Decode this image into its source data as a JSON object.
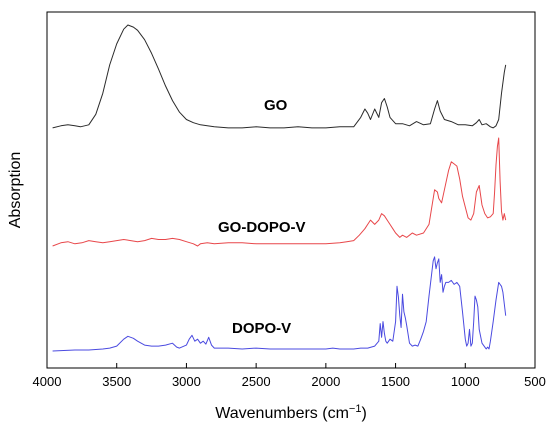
{
  "chart_data": {
    "type": "line",
    "title": "",
    "xlabel": "Wavenumbers (cm",
    "xlabel_sup": "−1",
    "xlabel_tail": ")",
    "ylabel": "Absorption",
    "xlim": [
      4000,
      500
    ],
    "x_reversed": true,
    "x_ticks": [
      "4000",
      "3500",
      "3000",
      "2500",
      "2000",
      "1500",
      "1000",
      "500"
    ],
    "y_ticks_shown": false,
    "grid": false,
    "legend": "none",
    "series": [
      {
        "name": "GO",
        "color": "#2b2b2b",
        "x": [
          3960,
          3900,
          3850,
          3800,
          3760,
          3700,
          3650,
          3600,
          3550,
          3500,
          3450,
          3420,
          3380,
          3350,
          3300,
          3250,
          3200,
          3150,
          3100,
          3050,
          3000,
          2950,
          2900,
          2850,
          2800,
          2700,
          2600,
          2500,
          2400,
          2300,
          2200,
          2100,
          2000,
          1900,
          1800,
          1750,
          1720,
          1700,
          1680,
          1650,
          1620,
          1600,
          1580,
          1560,
          1540,
          1500,
          1450,
          1400,
          1350,
          1300,
          1250,
          1220,
          1200,
          1180,
          1150,
          1100,
          1050,
          1000,
          950,
          920,
          900,
          880,
          850,
          820,
          800,
          780,
          760,
          740,
          720,
          710
        ],
        "y": [
          0.02,
          0.04,
          0.05,
          0.04,
          0.03,
          0.05,
          0.15,
          0.35,
          0.62,
          0.82,
          0.96,
          1.0,
          0.98,
          0.95,
          0.86,
          0.73,
          0.58,
          0.42,
          0.28,
          0.17,
          0.1,
          0.07,
          0.05,
          0.04,
          0.03,
          0.02,
          0.02,
          0.03,
          0.02,
          0.02,
          0.03,
          0.02,
          0.02,
          0.03,
          0.03,
          0.12,
          0.2,
          0.16,
          0.1,
          0.2,
          0.12,
          0.26,
          0.3,
          0.22,
          0.12,
          0.06,
          0.06,
          0.04,
          0.08,
          0.05,
          0.06,
          0.2,
          0.28,
          0.18,
          0.1,
          0.08,
          0.05,
          0.05,
          0.04,
          0.07,
          0.1,
          0.05,
          0.06,
          0.03,
          0.02,
          0.04,
          0.1,
          0.35,
          0.55,
          0.62
        ]
      },
      {
        "name": "GO-DOPO-V",
        "color": "#e8474a",
        "x": [
          3960,
          3900,
          3850,
          3800,
          3750,
          3700,
          3650,
          3600,
          3550,
          3500,
          3450,
          3400,
          3350,
          3300,
          3250,
          3200,
          3150,
          3100,
          3050,
          3000,
          2950,
          2920,
          2900,
          2850,
          2800,
          2700,
          2600,
          2500,
          2400,
          2300,
          2200,
          2100,
          2000,
          1900,
          1850,
          1800,
          1760,
          1720,
          1700,
          1680,
          1650,
          1620,
          1600,
          1580,
          1560,
          1540,
          1520,
          1500,
          1470,
          1450,
          1420,
          1400,
          1380,
          1350,
          1300,
          1260,
          1240,
          1220,
          1200,
          1190,
          1170,
          1150,
          1120,
          1100,
          1080,
          1060,
          1040,
          1020,
          1000,
          980,
          960,
          940,
          920,
          900,
          880,
          860,
          840,
          820,
          800,
          790,
          780,
          770,
          760,
          750,
          740,
          730,
          720,
          710
        ],
        "y": [
          0.0,
          0.03,
          0.04,
          0.02,
          0.03,
          0.05,
          0.04,
          0.03,
          0.04,
          0.05,
          0.06,
          0.05,
          0.04,
          0.05,
          0.07,
          0.06,
          0.06,
          0.07,
          0.06,
          0.04,
          0.02,
          0.0,
          0.02,
          0.03,
          0.02,
          0.03,
          0.03,
          0.02,
          0.02,
          0.02,
          0.02,
          0.02,
          0.02,
          0.03,
          0.04,
          0.05,
          0.1,
          0.16,
          0.2,
          0.24,
          0.2,
          0.24,
          0.3,
          0.28,
          0.24,
          0.2,
          0.16,
          0.12,
          0.08,
          0.1,
          0.08,
          0.1,
          0.12,
          0.1,
          0.12,
          0.2,
          0.36,
          0.52,
          0.5,
          0.44,
          0.4,
          0.52,
          0.7,
          0.78,
          0.76,
          0.74,
          0.62,
          0.46,
          0.36,
          0.26,
          0.24,
          0.3,
          0.5,
          0.56,
          0.38,
          0.3,
          0.26,
          0.27,
          0.3,
          0.5,
          0.75,
          0.92,
          1.0,
          0.6,
          0.32,
          0.24,
          0.3,
          0.24
        ]
      },
      {
        "name": "DOPO-V",
        "color": "#4a4ae0",
        "x": [
          3960,
          3800,
          3700,
          3600,
          3550,
          3500,
          3450,
          3420,
          3380,
          3350,
          3300,
          3250,
          3200,
          3150,
          3100,
          3070,
          3050,
          3000,
          2980,
          2960,
          2940,
          2920,
          2900,
          2880,
          2860,
          2840,
          2820,
          2800,
          2700,
          2600,
          2500,
          2400,
          2300,
          2200,
          2100,
          2000,
          1950,
          1900,
          1850,
          1800,
          1750,
          1700,
          1650,
          1620,
          1610,
          1600,
          1590,
          1580,
          1570,
          1560,
          1540,
          1520,
          1500,
          1490,
          1480,
          1470,
          1460,
          1450,
          1440,
          1430,
          1420,
          1400,
          1380,
          1360,
          1340,
          1320,
          1300,
          1280,
          1260,
          1240,
          1230,
          1220,
          1210,
          1200,
          1190,
          1180,
          1170,
          1160,
          1150,
          1140,
          1120,
          1100,
          1080,
          1060,
          1040,
          1020,
          1000,
          990,
          980,
          970,
          960,
          950,
          940,
          930,
          920,
          910,
          900,
          880,
          860,
          850,
          840,
          830,
          820,
          800,
          780,
          760,
          750,
          740,
          730,
          720,
          710
        ],
        "y": [
          0.0,
          0.01,
          0.01,
          0.02,
          0.03,
          0.05,
          0.12,
          0.15,
          0.13,
          0.1,
          0.06,
          0.05,
          0.05,
          0.06,
          0.08,
          0.04,
          0.03,
          0.06,
          0.12,
          0.16,
          0.1,
          0.12,
          0.08,
          0.1,
          0.07,
          0.14,
          0.06,
          0.03,
          0.03,
          0.02,
          0.03,
          0.02,
          0.02,
          0.02,
          0.02,
          0.02,
          0.03,
          0.02,
          0.02,
          0.02,
          0.03,
          0.03,
          0.05,
          0.1,
          0.28,
          0.14,
          0.3,
          0.18,
          0.1,
          0.08,
          0.12,
          0.1,
          0.3,
          0.66,
          0.55,
          0.36,
          0.24,
          0.58,
          0.4,
          0.34,
          0.26,
          0.08,
          0.05,
          0.06,
          0.05,
          0.12,
          0.2,
          0.3,
          0.56,
          0.8,
          0.92,
          0.96,
          0.84,
          0.9,
          0.94,
          0.7,
          0.78,
          0.6,
          0.66,
          0.7,
          0.7,
          0.72,
          0.68,
          0.7,
          0.66,
          0.4,
          0.12,
          0.05,
          0.08,
          0.22,
          0.05,
          0.08,
          0.3,
          0.56,
          0.52,
          0.45,
          0.22,
          0.08,
          0.04,
          0.02,
          0.04,
          0.02,
          0.1,
          0.3,
          0.52,
          0.7,
          0.68,
          0.66,
          0.6,
          0.48,
          0.36
        ]
      }
    ]
  }
}
